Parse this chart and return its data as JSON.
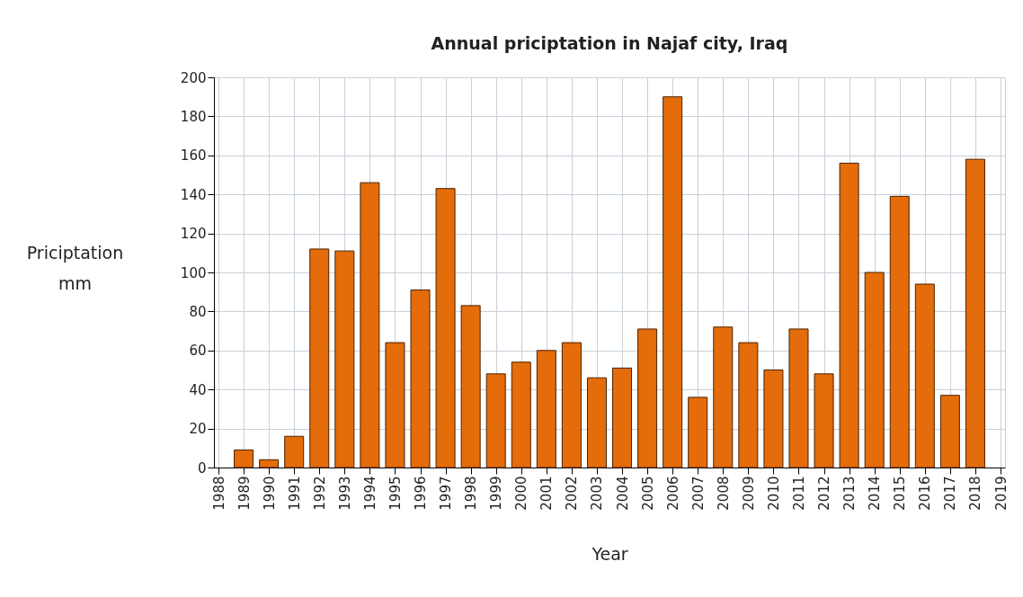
{
  "chart_data": {
    "type": "bar",
    "title": "Annual priciptation in Najaf city, Iraq",
    "xlabel": "Year",
    "ylabel": "Priciptation\nmm",
    "x": [
      1989,
      1990,
      1991,
      1992,
      1993,
      1994,
      1995,
      1996,
      1997,
      1998,
      1999,
      2000,
      2001,
      2002,
      2003,
      2004,
      2005,
      2006,
      2007,
      2008,
      2009,
      2010,
      2011,
      2012,
      2013,
      2014,
      2015,
      2016,
      2017,
      2018
    ],
    "values": [
      9,
      4,
      16,
      112,
      111,
      146,
      64,
      91,
      143,
      83,
      48,
      54,
      60,
      64,
      46,
      51,
      71,
      190,
      36,
      72,
      64,
      50,
      71,
      48,
      156,
      100,
      139,
      94,
      37,
      158
    ],
    "color": "#e46c0a",
    "xlim": [
      1988,
      2019
    ],
    "xticks": [
      1988,
      1989,
      1990,
      1991,
      1992,
      1993,
      1994,
      1995,
      1996,
      1997,
      1998,
      1999,
      2000,
      2001,
      2002,
      2003,
      2004,
      2005,
      2006,
      2007,
      2008,
      2009,
      2010,
      2011,
      2012,
      2013,
      2014,
      2015,
      2016,
      2017,
      2018,
      2019
    ],
    "ylim": [
      0,
      200
    ],
    "yticks": [
      0,
      20,
      40,
      60,
      80,
      100,
      120,
      140,
      160,
      180,
      200
    ],
    "grid": true
  }
}
